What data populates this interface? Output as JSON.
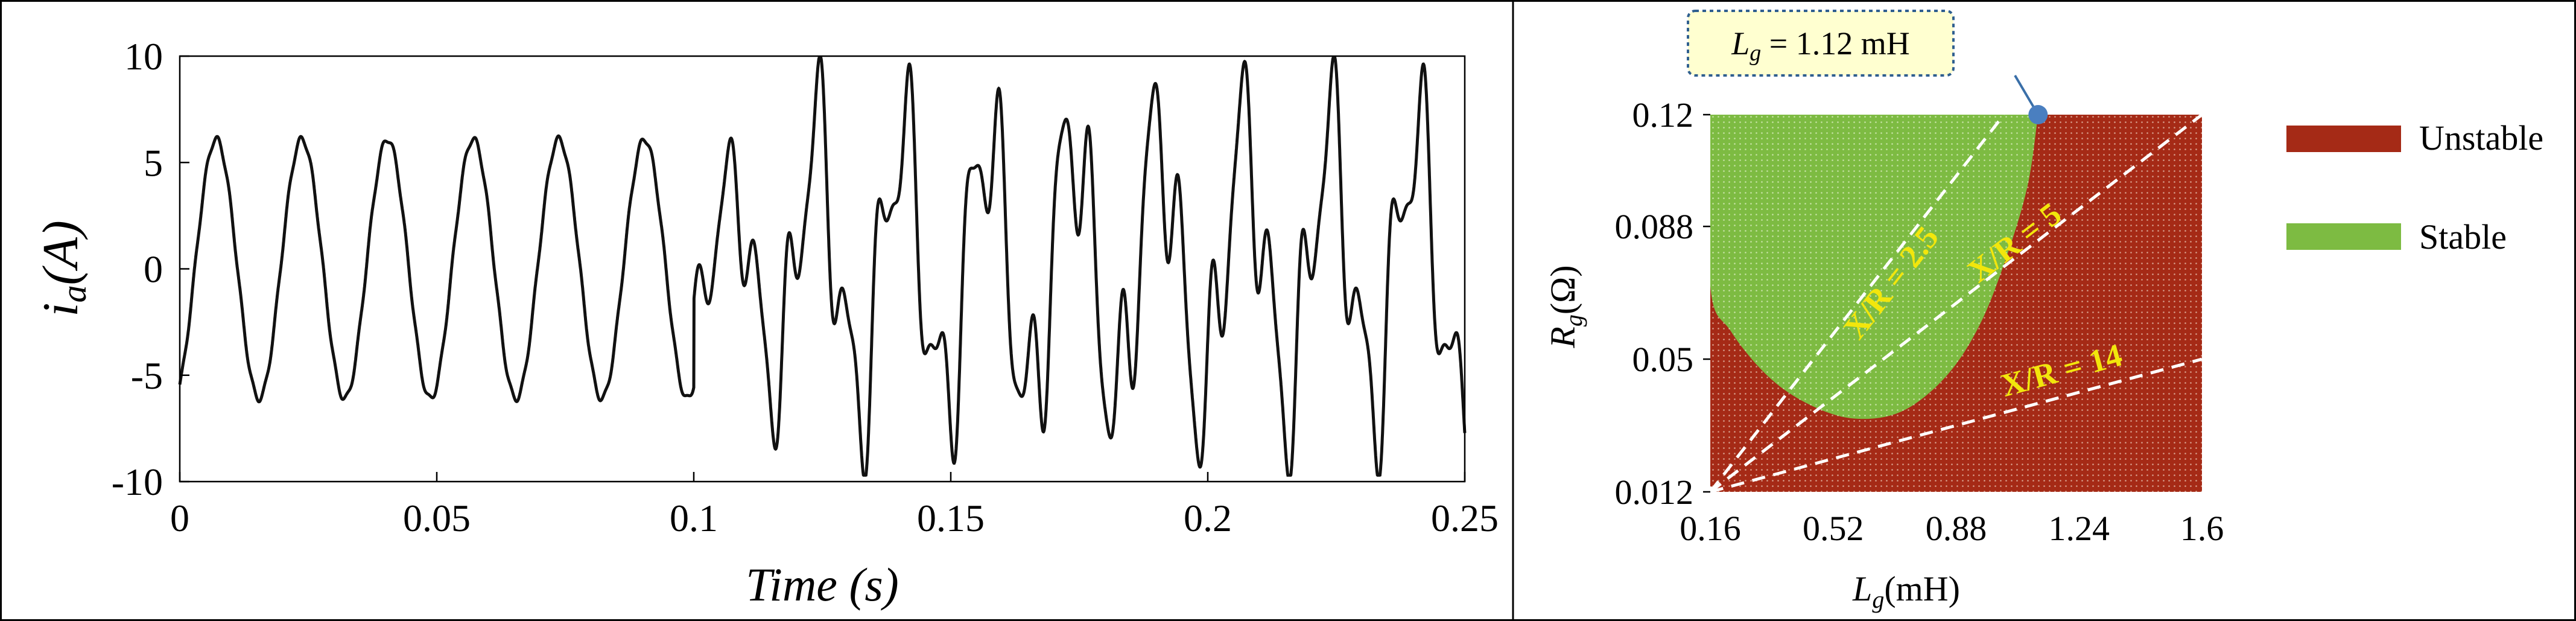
{
  "chart_data": [
    {
      "type": "line",
      "title": "",
      "xlabel": "Time",
      "xlabel_unit": "(s)",
      "ylabel_var": "i",
      "ylabel_sub": "a",
      "ylabel_unit": "(A)",
      "xlim": [
        0,
        0.25
      ],
      "ylim": [
        -10,
        10
      ],
      "xticks": [
        "0",
        "0.05",
        "0.1",
        "0.15",
        "0.2",
        "0.25"
      ],
      "yticks": [
        "10",
        "5",
        "0",
        "-5",
        "-10"
      ],
      "grid": false,
      "series": [
        {
          "stable_segment": {
            "t_start": 0,
            "t_end": 0.1,
            "frequency_hz": 60,
            "amplitude": 6.1
          },
          "unstable_segment": {
            "t_start": 0.1,
            "t_end": 0.25,
            "fundamental_hz": 60,
            "peak_range": [
              -9.7,
              9.9
            ]
          }
        }
      ]
    },
    {
      "type": "heatmap",
      "title": "",
      "xlabel_var": "L",
      "xlabel_sub": "g",
      "xlabel_unit": "(mH)",
      "ylabel_var": "R",
      "ylabel_sub": "g",
      "ylabel_unit": "(Ω)",
      "xlim": [
        0.16,
        1.6
      ],
      "ylim": [
        0.012,
        0.12
      ],
      "xticks": [
        "0.16",
        "0.52",
        "0.88",
        "1.24",
        "1.6"
      ],
      "yticks": [
        "0.12",
        "0.088",
        "0.05",
        "0.012"
      ],
      "legend": [
        {
          "label": "Unstable",
          "color": "#a52a16"
        },
        {
          "label": "Stable",
          "color": "#7dbb42"
        }
      ],
      "legend_position": "right",
      "stable_region_boundary": [
        {
          "L": 0.16,
          "R": 0.12
        },
        {
          "L": 0.16,
          "R": 0.071
        },
        {
          "L": 0.22,
          "R": 0.058
        },
        {
          "L": 0.33,
          "R": 0.045
        },
        {
          "L": 0.45,
          "R": 0.037
        },
        {
          "L": 0.58,
          "R": 0.033
        },
        {
          "L": 0.72,
          "R": 0.035
        },
        {
          "L": 0.85,
          "R": 0.045
        },
        {
          "L": 0.95,
          "R": 0.06
        },
        {
          "L": 1.03,
          "R": 0.08
        },
        {
          "L": 1.09,
          "R": 0.1
        },
        {
          "L": 1.12,
          "R": 0.12
        }
      ],
      "ratio_lines": [
        {
          "label": "X/R = 2.5",
          "end": {
            "L": 1.02,
            "R": 0.12
          }
        },
        {
          "label": "X/R = 5",
          "end": {
            "L": 1.6,
            "R": 0.12
          }
        },
        {
          "label": "X/R = 14",
          "end": {
            "L": 1.6,
            "R": 0.05
          }
        }
      ],
      "origin": {
        "L": 0.16,
        "R": 0.012
      },
      "annotation": {
        "var": "L",
        "sub": "g",
        "text": " = 1.12 mH",
        "L": 1.12,
        "R": 0.12
      }
    }
  ]
}
